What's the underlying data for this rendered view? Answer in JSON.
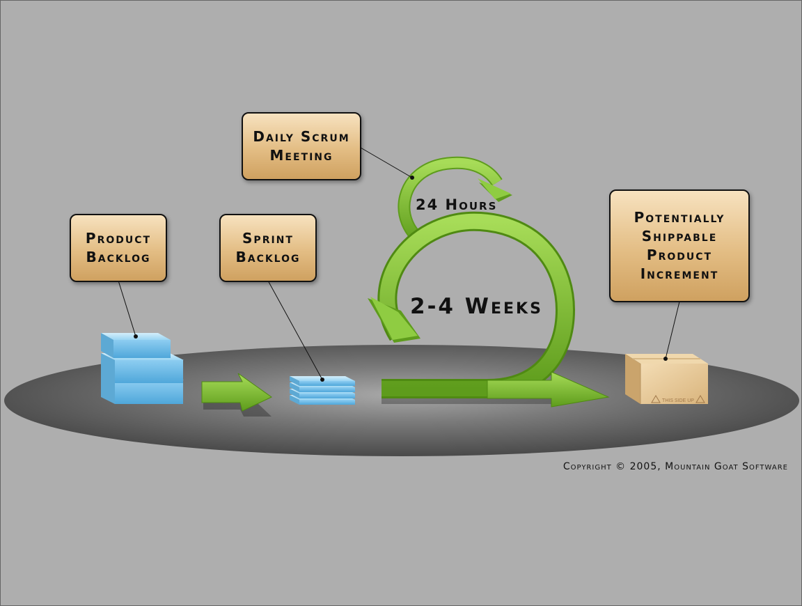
{
  "callouts": {
    "daily_scrum": [
      "Daily Scrum",
      "Meeting"
    ],
    "product_backlog": [
      "Product",
      "Backlog"
    ],
    "sprint_backlog": [
      "Sprint",
      "Backlog"
    ],
    "increment": [
      "Potentially",
      "Shippable",
      "Product",
      "Increment"
    ]
  },
  "labels": {
    "daily_cycle": "24 Hours",
    "sprint_cycle": "2-4 Weeks",
    "box_stamp": "THIS SIDE UP"
  },
  "copyright": "Copyright © 2005, Mountain Goat Software",
  "colors": {
    "background": "#aeaeae",
    "disc": "#555555",
    "arrow_green": "#7fc232",
    "arrow_green_dark": "#4f8a12",
    "backlog_blue": "#7cc5ee",
    "callout_tan": "#e3bd84",
    "box_tan": "#e6c693"
  }
}
